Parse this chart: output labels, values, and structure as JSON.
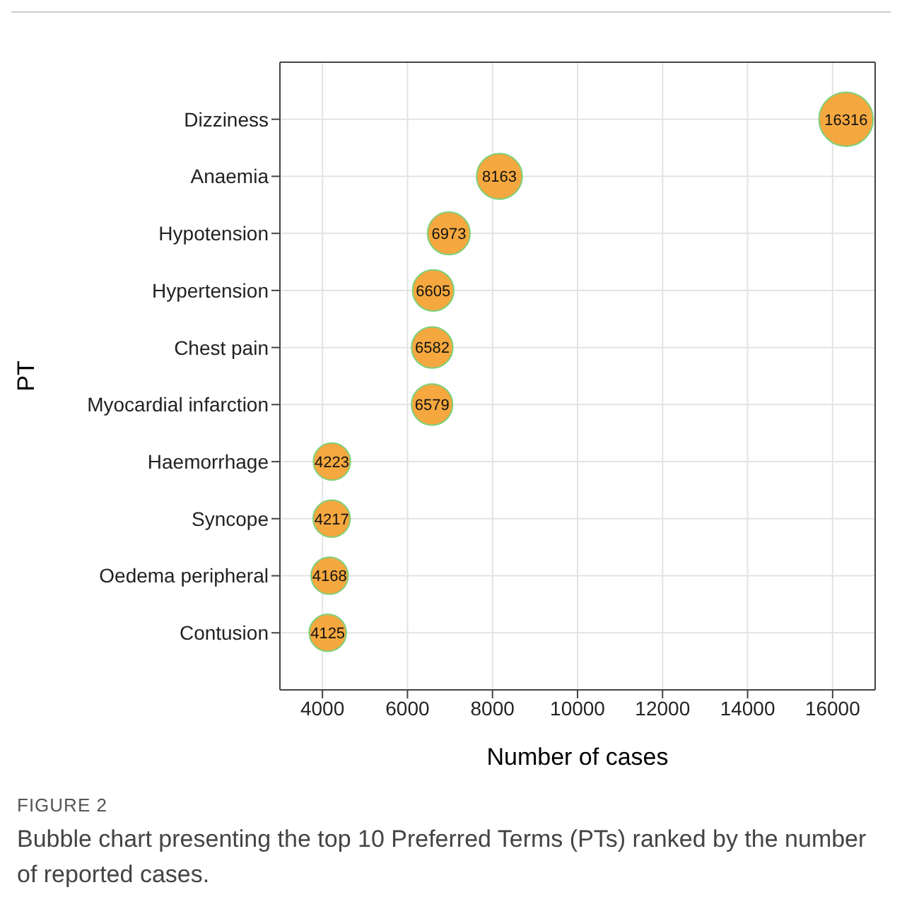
{
  "chart_data": {
    "type": "bubble",
    "orientation": "horizontal",
    "xlabel": "Number of cases",
    "ylabel": "PT",
    "categories": [
      "Dizziness",
      "Anaemia",
      "Hypotension",
      "Hypertension",
      "Chest pain",
      "Myocardial infarction",
      "Haemorrhage",
      "Syncope",
      "Oedema peripheral",
      "Contusion"
    ],
    "values": [
      16316,
      8163,
      6973,
      6605,
      6582,
      6579,
      4223,
      4217,
      4168,
      4125
    ],
    "sizes": [
      1,
      0.71,
      0.62,
      0.58,
      0.58,
      0.58,
      0.47,
      0.47,
      0.47,
      0.47
    ],
    "color": "#f5a83f",
    "data_labels": true,
    "grid": true,
    "legend": false,
    "xlim": [
      3000,
      17000
    ],
    "xticks": [
      4000,
      6000,
      8000,
      10000,
      12000,
      14000,
      16000
    ],
    "annotations": [
      "FIGURE 2",
      "Bubble chart presenting the top 10 Preferred Terms (PTs) ranked by the number of reported cases."
    ]
  }
}
